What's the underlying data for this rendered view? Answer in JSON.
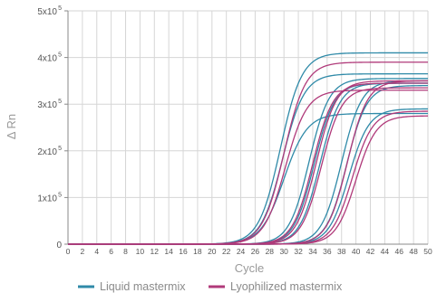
{
  "chart_data": {
    "type": "line",
    "title": "",
    "xlabel": "Cycle",
    "ylabel": "Δ Rn",
    "xlim": [
      0,
      50
    ],
    "ylim": [
      0,
      500000
    ],
    "grid": true,
    "legend_placement": "bottom",
    "x_ticks": [
      0,
      2,
      4,
      6,
      8,
      10,
      12,
      14,
      16,
      18,
      20,
      22,
      24,
      26,
      28,
      30,
      32,
      34,
      36,
      38,
      40,
      42,
      44,
      46,
      48,
      50
    ],
    "x_tick_labels": [
      "0",
      "2",
      "4",
      "6",
      "8",
      "10",
      "12",
      "14",
      "16",
      "18",
      "20",
      "22",
      "24",
      "26",
      "28",
      "30",
      "32",
      "34",
      "36",
      "38",
      "40",
      "42",
      "44",
      "46",
      "48",
      "50"
    ],
    "y_ticks": [
      0,
      100000,
      200000,
      300000,
      400000,
      500000
    ],
    "y_tick_labels": [
      "0",
      "1x10",
      "2x10",
      "3x10",
      "4x10",
      "5x10"
    ],
    "y_tick_exponents": [
      "",
      "5",
      "5",
      "5",
      "5",
      "5"
    ],
    "legend": [
      {
        "label": "Liquid mastermix",
        "color": "#2f8aa8"
      },
      {
        "label": "Lyophilized mastermix",
        "color": "#b03a7a"
      }
    ],
    "series": [
      {
        "color": "#2f8aa8",
        "plateau": 410000,
        "midpoint": 29.5,
        "slope": 1.5
      },
      {
        "color": "#2f8aa8",
        "plateau": 365000,
        "midpoint": 29.8,
        "slope": 1.5
      },
      {
        "color": "#2f8aa8",
        "plateau": 280000,
        "midpoint": 30.0,
        "slope": 1.6
      },
      {
        "color": "#2f8aa8",
        "plateau": 355000,
        "midpoint": 33.5,
        "slope": 1.4
      },
      {
        "color": "#2f8aa8",
        "plateau": 345000,
        "midpoint": 34.2,
        "slope": 1.4
      },
      {
        "color": "#2f8aa8",
        "plateau": 345000,
        "midpoint": 35.0,
        "slope": 1.4
      },
      {
        "color": "#2f8aa8",
        "plateau": 350000,
        "midpoint": 38.0,
        "slope": 1.4
      },
      {
        "color": "#2f8aa8",
        "plateau": 340000,
        "midpoint": 38.7,
        "slope": 1.4
      },
      {
        "color": "#2f8aa8",
        "plateau": 290000,
        "midpoint": 39.0,
        "slope": 1.4
      },
      {
        "color": "#b03a7a",
        "plateau": 390000,
        "midpoint": 30.0,
        "slope": 1.5
      },
      {
        "color": "#b03a7a",
        "plateau": 330000,
        "midpoint": 30.2,
        "slope": 1.5
      },
      {
        "color": "#b03a7a",
        "plateau": 345000,
        "midpoint": 34.0,
        "slope": 1.4
      },
      {
        "color": "#b03a7a",
        "plateau": 350000,
        "midpoint": 34.5,
        "slope": 1.4
      },
      {
        "color": "#b03a7a",
        "plateau": 335000,
        "midpoint": 35.2,
        "slope": 1.4
      },
      {
        "color": "#b03a7a",
        "plateau": 350000,
        "midpoint": 38.8,
        "slope": 1.4
      },
      {
        "color": "#b03a7a",
        "plateau": 285000,
        "midpoint": 39.5,
        "slope": 1.4
      },
      {
        "color": "#b03a7a",
        "plateau": 275000,
        "midpoint": 40.0,
        "slope": 1.4
      }
    ]
  }
}
